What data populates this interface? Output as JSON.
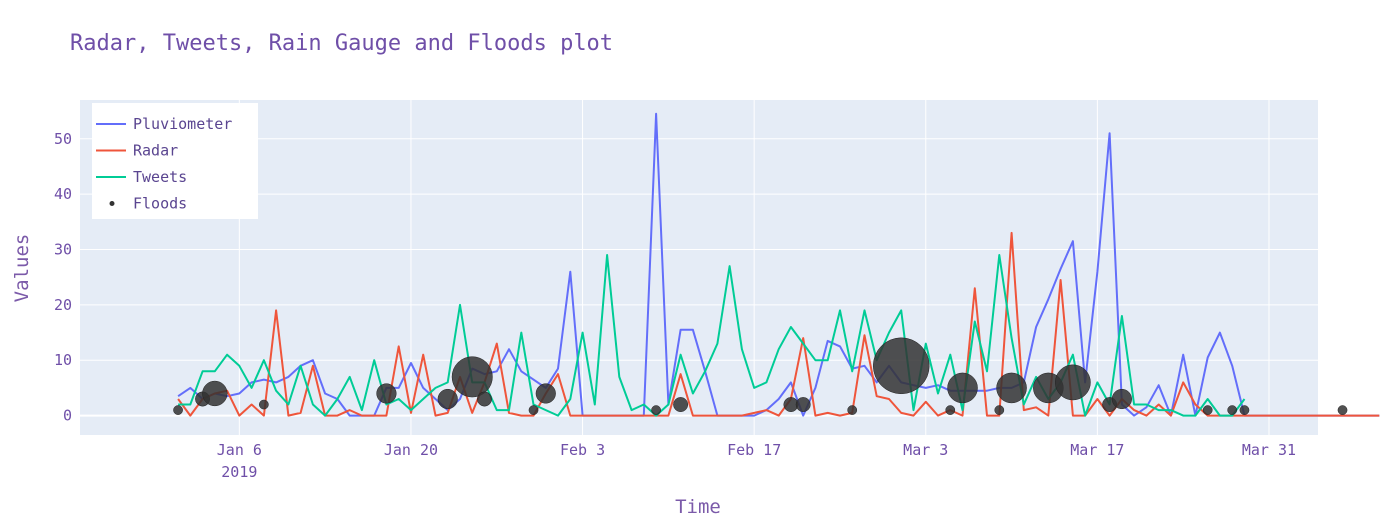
{
  "chart_data": {
    "type": "line",
    "title": "Radar, Tweets, Rain Gauge and Floods plot",
    "xlabel": "Time",
    "ylabel": "Values",
    "x_start": "2019-01-01",
    "x_range": [
      "2018-12-24",
      "2019-04-04"
    ],
    "ylim": [
      -3.5,
      57
    ],
    "y_ticks": [
      0,
      10,
      20,
      30,
      40,
      50
    ],
    "x_ticks": [
      {
        "date": "2019-01-06",
        "label": "Jan 6",
        "sublabel": "2019"
      },
      {
        "date": "2019-01-20",
        "label": "Jan 20",
        "sublabel": ""
      },
      {
        "date": "2019-02-03",
        "label": "Feb 3",
        "sublabel": ""
      },
      {
        "date": "2019-02-17",
        "label": "Feb 17",
        "sublabel": ""
      },
      {
        "date": "2019-03-03",
        "label": "Mar 3",
        "sublabel": ""
      },
      {
        "date": "2019-03-17",
        "label": "Mar 17",
        "sublabel": ""
      },
      {
        "date": "2019-03-31",
        "label": "Mar 31",
        "sublabel": ""
      }
    ],
    "legend": {
      "position": "top-left"
    },
    "grid": true,
    "series": [
      {
        "name": "Pluviometer",
        "color": "#636efa",
        "values": [
          [
            1,
            3.5
          ],
          [
            2,
            5
          ],
          [
            3,
            3
          ],
          [
            4,
            4
          ],
          [
            5,
            3.5
          ],
          [
            6,
            4
          ],
          [
            7,
            6
          ],
          [
            8,
            6.5
          ],
          [
            9,
            6
          ],
          [
            10,
            7
          ],
          [
            11,
            9
          ],
          [
            12,
            10
          ],
          [
            13,
            4
          ],
          [
            14,
            3
          ],
          [
            15,
            0
          ],
          [
            16,
            0
          ],
          [
            17,
            0
          ],
          [
            18,
            5
          ],
          [
            19,
            5
          ],
          [
            20,
            9.5
          ],
          [
            21,
            5
          ],
          [
            22,
            3
          ],
          [
            23,
            1
          ],
          [
            24,
            3
          ],
          [
            25,
            8.5
          ],
          [
            26,
            7.5
          ],
          [
            27,
            8
          ],
          [
            28,
            12
          ],
          [
            29,
            8
          ],
          [
            30,
            6.5
          ],
          [
            31,
            5
          ],
          [
            32,
            8.5
          ],
          [
            33,
            26
          ],
          [
            34,
            0
          ],
          [
            35,
            0
          ],
          [
            36,
            0
          ],
          [
            37,
            0
          ],
          [
            38,
            0
          ],
          [
            39,
            0
          ],
          [
            40,
            54.5
          ],
          [
            41,
            2
          ],
          [
            42,
            15.5
          ],
          [
            43,
            15.5
          ],
          [
            44,
            8
          ],
          [
            45,
            0
          ],
          [
            46,
            0
          ],
          [
            47,
            0
          ],
          [
            48,
            0
          ],
          [
            49,
            1
          ],
          [
            50,
            3
          ],
          [
            51,
            6
          ],
          [
            52,
            0
          ],
          [
            53,
            5
          ],
          [
            54,
            13.5
          ],
          [
            55,
            12.5
          ],
          [
            56,
            8.5
          ],
          [
            57,
            9
          ],
          [
            58,
            6
          ],
          [
            59,
            9
          ],
          [
            60,
            6
          ],
          [
            61,
            5.5
          ],
          [
            62,
            5
          ],
          [
            63,
            5.5
          ],
          [
            64,
            4.5
          ],
          [
            65,
            4.5
          ],
          [
            66,
            4.5
          ],
          [
            67,
            4.5
          ],
          [
            68,
            5
          ],
          [
            69,
            5
          ],
          [
            70,
            6
          ],
          [
            71,
            16
          ],
          [
            72,
            21
          ],
          [
            73,
            26.5
          ],
          [
            74,
            31.5
          ],
          [
            75,
            6
          ],
          [
            76,
            26
          ],
          [
            77,
            51
          ],
          [
            78,
            2
          ],
          [
            79,
            0
          ],
          [
            80,
            1.5
          ],
          [
            81,
            5.5
          ],
          [
            82,
            0
          ],
          [
            83,
            11
          ],
          [
            84,
            0
          ],
          [
            85,
            10.5
          ],
          [
            86,
            15
          ],
          [
            87,
            9
          ],
          [
            88,
            0
          ],
          [
            89,
            0
          ],
          [
            90,
            0
          ],
          [
            91,
            0
          ],
          [
            92,
            0
          ],
          [
            93,
            0
          ],
          [
            94,
            0
          ],
          [
            95,
            0
          ],
          [
            96,
            0
          ],
          [
            97,
            0
          ],
          [
            98,
            0
          ],
          [
            99,
            0
          ]
        ]
      },
      {
        "name": "Radar",
        "color": "#ef553b",
        "values": [
          [
            1,
            3
          ],
          [
            2,
            0
          ],
          [
            3,
            3
          ],
          [
            4,
            4
          ],
          [
            5,
            4.5
          ],
          [
            6,
            0
          ],
          [
            7,
            2
          ],
          [
            8,
            0
          ],
          [
            9,
            19
          ],
          [
            10,
            0
          ],
          [
            11,
            0.5
          ],
          [
            12,
            9
          ],
          [
            13,
            0
          ],
          [
            14,
            0
          ],
          [
            15,
            1
          ],
          [
            16,
            0
          ],
          [
            17,
            0
          ],
          [
            18,
            0
          ],
          [
            19,
            12.5
          ],
          [
            20,
            0.5
          ],
          [
            21,
            11
          ],
          [
            22,
            0
          ],
          [
            23,
            0.5
          ],
          [
            24,
            7
          ],
          [
            25,
            0.5
          ],
          [
            26,
            6
          ],
          [
            27,
            13
          ],
          [
            28,
            0.5
          ],
          [
            29,
            0
          ],
          [
            30,
            0
          ],
          [
            31,
            4
          ],
          [
            32,
            7.5
          ],
          [
            33,
            0
          ],
          [
            34,
            0
          ],
          [
            35,
            0
          ],
          [
            36,
            0
          ],
          [
            37,
            0
          ],
          [
            38,
            0
          ],
          [
            39,
            0
          ],
          [
            40,
            0
          ],
          [
            41,
            0
          ],
          [
            42,
            7.5
          ],
          [
            43,
            0
          ],
          [
            44,
            0
          ],
          [
            45,
            0
          ],
          [
            46,
            0
          ],
          [
            47,
            0
          ],
          [
            48,
            0.5
          ],
          [
            49,
            1
          ],
          [
            50,
            0
          ],
          [
            51,
            3
          ],
          [
            52,
            14
          ],
          [
            53,
            0
          ],
          [
            54,
            0.5
          ],
          [
            55,
            0
          ],
          [
            56,
            0.5
          ],
          [
            57,
            14.5
          ],
          [
            58,
            3.5
          ],
          [
            59,
            3
          ],
          [
            60,
            0.5
          ],
          [
            61,
            0
          ],
          [
            62,
            2.5
          ],
          [
            63,
            0
          ],
          [
            64,
            1
          ],
          [
            65,
            0
          ],
          [
            66,
            23
          ],
          [
            67,
            0
          ],
          [
            68,
            0
          ],
          [
            69,
            33
          ],
          [
            70,
            1
          ],
          [
            71,
            1.5
          ],
          [
            72,
            0
          ],
          [
            73,
            24.5
          ],
          [
            74,
            0
          ],
          [
            75,
            0
          ],
          [
            76,
            3
          ],
          [
            77,
            0
          ],
          [
            78,
            3
          ],
          [
            79,
            1
          ],
          [
            80,
            0
          ],
          [
            81,
            2
          ],
          [
            82,
            0
          ],
          [
            83,
            6
          ],
          [
            84,
            2
          ],
          [
            85,
            0
          ],
          [
            86,
            0
          ],
          [
            87,
            0
          ],
          [
            88,
            0
          ],
          [
            89,
            0
          ],
          [
            90,
            0
          ],
          [
            91,
            0
          ],
          [
            92,
            0
          ],
          [
            93,
            0
          ],
          [
            94,
            0
          ],
          [
            95,
            0
          ],
          [
            96,
            0
          ],
          [
            97,
            0
          ],
          [
            98,
            0
          ],
          [
            99,
            0
          ]
        ]
      },
      {
        "name": "Tweets",
        "color": "#00cc96",
        "values": [
          [
            1,
            2
          ],
          [
            2,
            2
          ],
          [
            3,
            8
          ],
          [
            4,
            8
          ],
          [
            5,
            11
          ],
          [
            6,
            9
          ],
          [
            7,
            5
          ],
          [
            8,
            10
          ],
          [
            9,
            4.5
          ],
          [
            10,
            2
          ],
          [
            11,
            9
          ],
          [
            12,
            2
          ],
          [
            13,
            0
          ],
          [
            14,
            3
          ],
          [
            15,
            7
          ],
          [
            16,
            1
          ],
          [
            17,
            10
          ],
          [
            18,
            2
          ],
          [
            19,
            3
          ],
          [
            20,
            1
          ],
          [
            21,
            3
          ],
          [
            22,
            5
          ],
          [
            23,
            6
          ],
          [
            24,
            20
          ],
          [
            25,
            6
          ],
          [
            26,
            6
          ],
          [
            27,
            1
          ],
          [
            28,
            1
          ],
          [
            29,
            15
          ],
          [
            30,
            2
          ],
          [
            31,
            1
          ],
          [
            32,
            0
          ],
          [
            33,
            3
          ],
          [
            34,
            15
          ],
          [
            35,
            2
          ],
          [
            36,
            29
          ],
          [
            37,
            7
          ],
          [
            38,
            1
          ],
          [
            39,
            2
          ],
          [
            40,
            0
          ],
          [
            41,
            2
          ],
          [
            42,
            11
          ],
          [
            43,
            4
          ],
          [
            44,
            8
          ],
          [
            45,
            13
          ],
          [
            46,
            27
          ],
          [
            47,
            12
          ],
          [
            48,
            5
          ],
          [
            49,
            6
          ],
          [
            50,
            12
          ],
          [
            51,
            16
          ],
          [
            52,
            13
          ],
          [
            53,
            10
          ],
          [
            54,
            10
          ],
          [
            55,
            19
          ],
          [
            56,
            8
          ],
          [
            57,
            19
          ],
          [
            58,
            10
          ],
          [
            59,
            15
          ],
          [
            60,
            19
          ],
          [
            61,
            1
          ],
          [
            62,
            13
          ],
          [
            63,
            4
          ],
          [
            64,
            11
          ],
          [
            65,
            1
          ],
          [
            66,
            17
          ],
          [
            67,
            8
          ],
          [
            68,
            29
          ],
          [
            69,
            14
          ],
          [
            70,
            2
          ],
          [
            71,
            7
          ],
          [
            72,
            3
          ],
          [
            73,
            6
          ],
          [
            74,
            11
          ],
          [
            75,
            0
          ],
          [
            76,
            6
          ],
          [
            77,
            2
          ],
          [
            78,
            18
          ],
          [
            79,
            2
          ],
          [
            80,
            2
          ],
          [
            81,
            1
          ],
          [
            82,
            1
          ],
          [
            83,
            0
          ],
          [
            84,
            0
          ],
          [
            85,
            3
          ],
          [
            86,
            0
          ],
          [
            87,
            0
          ],
          [
            88,
            3
          ]
        ]
      },
      {
        "name": "Floods",
        "color": "#333333",
        "type": "scatter",
        "points": [
          [
            1,
            1,
            1
          ],
          [
            3,
            3,
            2
          ],
          [
            4,
            4,
            4
          ],
          [
            8,
            2,
            1
          ],
          [
            18,
            4,
            3
          ],
          [
            23,
            3,
            3
          ],
          [
            25,
            7,
            7
          ],
          [
            26,
            3,
            2
          ],
          [
            30,
            1,
            1
          ],
          [
            31,
            4,
            3
          ],
          [
            40,
            1,
            1
          ],
          [
            42,
            2,
            2
          ],
          [
            51,
            2,
            2
          ],
          [
            52,
            2,
            2
          ],
          [
            56,
            1,
            1
          ],
          [
            60,
            9,
            10
          ],
          [
            64,
            1,
            1
          ],
          [
            65,
            5,
            5
          ],
          [
            68,
            1,
            1
          ],
          [
            69,
            5,
            5
          ],
          [
            72,
            5,
            5
          ],
          [
            74,
            6,
            6
          ],
          [
            77,
            2,
            2
          ],
          [
            78,
            3,
            3
          ],
          [
            85,
            1,
            1
          ],
          [
            87,
            1,
            1
          ],
          [
            88,
            1,
            1
          ],
          [
            96,
            1,
            1
          ]
        ]
      }
    ]
  }
}
